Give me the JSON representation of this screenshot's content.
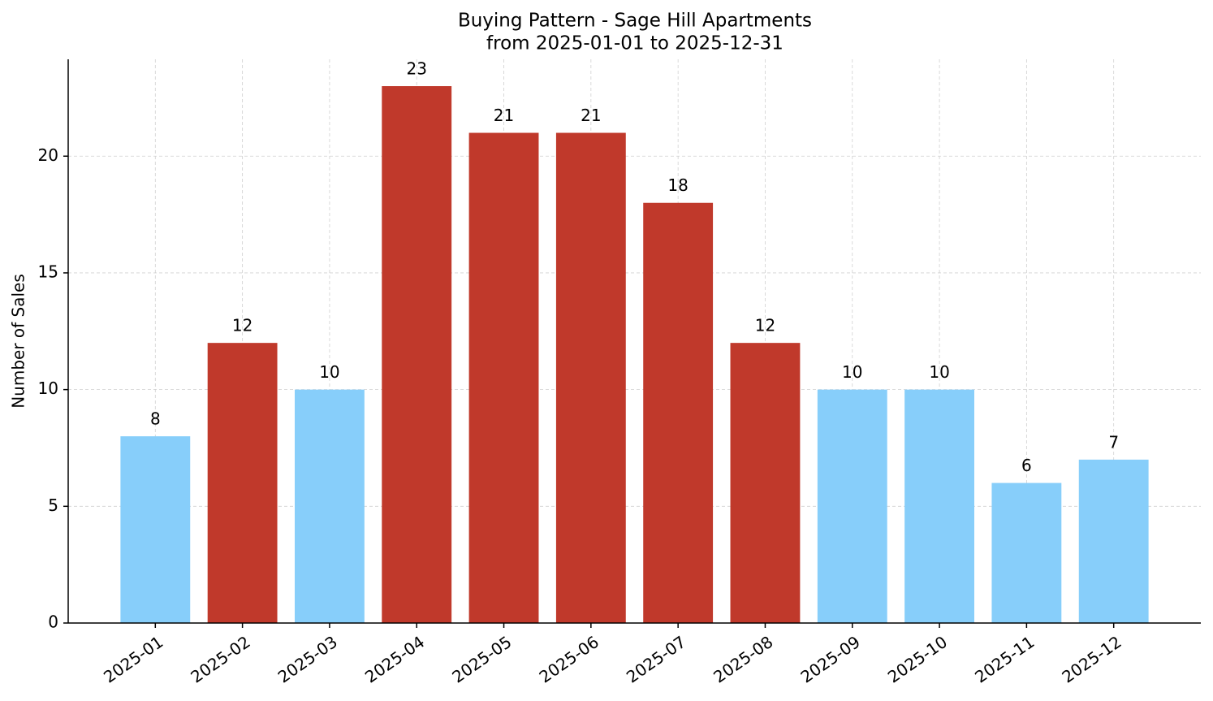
{
  "chart_data": {
    "type": "bar",
    "title": "Buying Pattern - Sage Hill Apartments",
    "subtitle": "from 2025-01-01 to 2025-12-31",
    "y_label": "Number of Sales",
    "categories": [
      "2025-01",
      "2025-02",
      "2025-03",
      "2025-04",
      "2025-05",
      "2025-06",
      "2025-07",
      "2025-08",
      "2025-09",
      "2025-10",
      "2025-11",
      "2025-12"
    ],
    "values": [
      8,
      12,
      10,
      23,
      21,
      21,
      18,
      12,
      10,
      10,
      6,
      7
    ],
    "colors": [
      "#87cefa",
      "#c0392b",
      "#87cefa",
      "#c0392b",
      "#c0392b",
      "#c0392b",
      "#c0392b",
      "#c0392b",
      "#87cefa",
      "#87cefa",
      "#87cefa",
      "#87cefa"
    ],
    "ylim": [
      0,
      24.15
    ],
    "yticks": [
      0,
      5,
      10,
      15,
      20
    ],
    "grid": true
  }
}
